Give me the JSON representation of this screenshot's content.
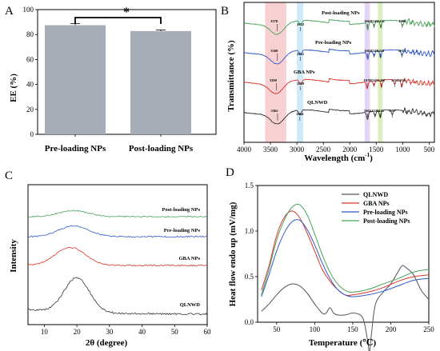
{
  "chart_data": [
    {
      "panel": "A",
      "type": "bar",
      "ylabel": "EE (%)",
      "categories": [
        "Pre-loading NPs",
        "Post-loading NPs"
      ],
      "values": [
        87.5,
        82.8
      ],
      "errors": [
        1.2,
        0.9
      ],
      "ylim": [
        0,
        100
      ],
      "yticks": [
        "0",
        "20",
        "40",
        "60",
        "80",
        "100"
      ],
      "significance": "*",
      "bar_color": "#a7adb6"
    },
    {
      "panel": "B",
      "type": "line",
      "xlabel": "Wavelength (cm",
      "xlabel_sup": "-1",
      "xlabel_end": ")",
      "ylabel": "Transmittance (%)",
      "xlim": [
        4000,
        400
      ],
      "xticks": [
        "4000",
        "3500",
        "3000",
        "2500",
        "2000",
        "1500",
        "1000",
        "500"
      ],
      "series": [
        {
          "name": "Post-loading NPs",
          "color": "#4aa35a",
          "offset": 3,
          "peaks": [
            {
              "x": 3370,
              "label": "3370"
            },
            {
              "x": 2932,
              "label": "2932"
            },
            {
              "x": 1661,
              "label": "1661"
            },
            {
              "x": 1541,
              "label": "1541"
            },
            {
              "x": 1412,
              "label": "1412"
            },
            {
              "x": 1006,
              "label": "1006"
            }
          ]
        },
        {
          "name": "Pre-loading NPs",
          "color": "#2f59c9",
          "offset": 2,
          "peaks": [
            {
              "x": 3368,
              "label": "3368"
            },
            {
              "x": 2931,
              "label": "2931"
            },
            {
              "x": 1661,
              "label": "1661"
            },
            {
              "x": 1541,
              "label": "1541"
            },
            {
              "x": 1418,
              "label": "1418"
            },
            {
              "x": 1016,
              "label": "1016"
            }
          ]
        },
        {
          "name": "GBA NPs",
          "color": "#d9352b",
          "offset": 1,
          "peaks": [
            {
              "x": 3390,
              "label": "3390"
            },
            {
              "x": 2929,
              "label": "2929"
            },
            {
              "x": 1670,
              "label": "1670"
            },
            {
              "x": 1543,
              "label": "1543"
            },
            {
              "x": 1400,
              "label": "1400"
            },
            {
              "x": 1151,
              "label": "1151"
            },
            {
              "x": 1018,
              "label": "1018"
            }
          ]
        },
        {
          "name": "QLNWD",
          "color": "#333333",
          "offset": 0,
          "peaks": [
            {
              "x": 3365,
              "label": "3365"
            },
            {
              "x": 2944,
              "label": "2944"
            },
            {
              "x": 1664,
              "label": "1664"
            },
            {
              "x": 1521,
              "label": "1521"
            },
            {
              "x": 1423,
              "label": "1423"
            },
            {
              "x": 1197,
              "label": "1197"
            }
          ]
        }
      ],
      "highlight_bands": [
        {
          "from": 3600,
          "to": 3200,
          "color": "#f4c2c2"
        },
        {
          "from": 3000,
          "to": 2880,
          "color": "#bfe2f4"
        },
        {
          "from": 1720,
          "to": 1620,
          "color": "#dcc7ef"
        },
        {
          "from": 1470,
          "to": 1380,
          "color": "#cfe9a8"
        }
      ]
    },
    {
      "panel": "C",
      "type": "line",
      "xlabel": "2θ (degree)",
      "ylabel": "Intensity",
      "xlim": [
        5,
        60
      ],
      "xticks": [
        "10",
        "20",
        "30",
        "40",
        "50",
        "60"
      ],
      "series": [
        {
          "name": "Post-loading NPs",
          "color": "#4aa35a",
          "offset": 3,
          "peak_x": 19,
          "peak_h": 0.25
        },
        {
          "name": "Pre-loading NPs",
          "color": "#2f59c9",
          "offset": 2,
          "peak_x": 19,
          "peak_h": 0.45
        },
        {
          "name": "GBA NPs",
          "color": "#d9352b",
          "offset": 1,
          "peak_x": 18,
          "peak_h": 0.75
        },
        {
          "name": "QLNWD",
          "color": "#333333",
          "offset": 0,
          "peak_x": 20,
          "peak_h": 1.45
        }
      ]
    },
    {
      "panel": "D",
      "type": "line",
      "xlabel": "Temperature (℃)",
      "ylabel": "Heat flow endo up (mV/mg)",
      "xlim": [
        25,
        250
      ],
      "ylim": [
        0.0,
        1.5
      ],
      "xticks": [
        "50",
        "100",
        "150",
        "200",
        "250"
      ],
      "yticks": [
        "0.0",
        "0.5",
        "1.0",
        "1.5"
      ],
      "legend_position": "top-right",
      "series": [
        {
          "name": "QLNWD",
          "color": "#555555",
          "x": [
            30,
            40,
            50,
            60,
            70,
            80,
            90,
            100,
            110,
            115,
            120,
            125,
            130,
            140,
            150,
            160,
            165,
            170,
            172,
            175,
            180,
            190,
            200,
            210,
            215,
            220,
            230,
            240,
            250
          ],
          "y": [
            0.12,
            0.2,
            0.3,
            0.38,
            0.42,
            0.4,
            0.32,
            0.2,
            0.1,
            0.1,
            0.16,
            0.1,
            0.08,
            0.08,
            0.1,
            0.08,
            0.0,
            -0.22,
            -0.33,
            -0.1,
            0.2,
            0.33,
            0.42,
            0.56,
            0.62,
            0.6,
            0.52,
            0.35,
            0.25
          ]
        },
        {
          "name": "GBA NPs",
          "color": "#d9352b",
          "x": [
            30,
            40,
            50,
            60,
            70,
            80,
            90,
            100,
            110,
            120,
            130,
            140,
            150,
            170,
            190,
            210,
            230,
            250
          ],
          "y": [
            0.35,
            0.62,
            0.95,
            1.15,
            1.22,
            1.15,
            0.98,
            0.78,
            0.58,
            0.45,
            0.36,
            0.3,
            0.3,
            0.33,
            0.38,
            0.45,
            0.5,
            0.52
          ]
        },
        {
          "name": "Pre-loading NPs",
          "color": "#2f59c9",
          "x": [
            30,
            40,
            50,
            60,
            70,
            80,
            90,
            100,
            110,
            120,
            130,
            140,
            150,
            170,
            190,
            210,
            230,
            250
          ],
          "y": [
            0.28,
            0.52,
            0.78,
            0.98,
            1.1,
            1.12,
            1.02,
            0.85,
            0.65,
            0.48,
            0.36,
            0.3,
            0.28,
            0.3,
            0.34,
            0.4,
            0.46,
            0.48
          ]
        },
        {
          "name": "Post-loading NPs",
          "color": "#4aa35a",
          "x": [
            30,
            40,
            50,
            60,
            70,
            80,
            90,
            100,
            110,
            120,
            130,
            140,
            150,
            170,
            190,
            210,
            230,
            250
          ],
          "y": [
            0.3,
            0.58,
            0.9,
            1.12,
            1.26,
            1.29,
            1.18,
            0.97,
            0.74,
            0.55,
            0.42,
            0.35,
            0.33,
            0.36,
            0.42,
            0.48,
            0.55,
            0.58
          ]
        }
      ]
    }
  ]
}
